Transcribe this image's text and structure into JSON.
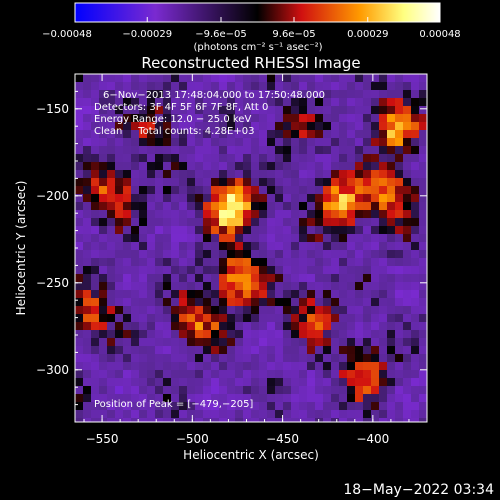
{
  "chart_data": {
    "type": "heatmap",
    "title": "Reconstructed RHESSI Image",
    "xlabel": "Heliocentric X (arcsec)",
    "ylabel": "Heliocentric Y (arcsec)",
    "xlim": [
      -565,
      -370
    ],
    "ylim": [
      -330,
      -130
    ],
    "x_ticks": [
      -550,
      -500,
      -450,
      -400
    ],
    "y_ticks": [
      -150,
      -200,
      -250,
      -300
    ],
    "x_tick_labels": [
      "−550",
      "−500",
      "−450",
      "−400"
    ],
    "y_tick_labels": [
      "−150",
      "−200",
      "−250",
      "−300"
    ],
    "colorbar": {
      "range": [
        -0.00048,
        0.00048
      ],
      "ticks": [
        -0.00048,
        -0.00029,
        -9.6e-05,
        9.6e-05,
        0.00029,
        0.00048
      ],
      "tick_labels": [
        "−0.00048",
        "−0.00029",
        "−9.6e−05",
        "9.6e−05",
        "0.00029",
        "0.00048"
      ],
      "unit_label": "(photons cm⁻² s⁻¹ asec⁻²)"
    },
    "annotations": [
      "6−Nov−2013 17:48:04.000 to 17:50:48.000",
      "Detectors: 3F 4F 5F 6F 7F 8F, Att 0",
      "Energy Range: 12.0 − 25.0 keV",
      "Clean     Total counts: 4.28E+03"
    ],
    "peak_label": "Position of Peak = [−479,−205]",
    "peak": [
      -479,
      -205
    ],
    "bright_regions": [
      {
        "x": -479,
        "y": -205,
        "value": 0.00048
      },
      {
        "x": -543,
        "y": -197,
        "value": 0.0003
      },
      {
        "x": -520,
        "y": -160,
        "value": 0.00022
      },
      {
        "x": -475,
        "y": -248,
        "value": 0.0004
      },
      {
        "x": -498,
        "y": -272,
        "value": 0.0003
      },
      {
        "x": -418,
        "y": -205,
        "value": 0.0004
      },
      {
        "x": -388,
        "y": -160,
        "value": 0.00035
      },
      {
        "x": -390,
        "y": -200,
        "value": 0.00034
      },
      {
        "x": -405,
        "y": -300,
        "value": 0.0003
      },
      {
        "x": -432,
        "y": -268,
        "value": 0.00025
      },
      {
        "x": -555,
        "y": -268,
        "value": 0.00026
      },
      {
        "x": -445,
        "y": -160,
        "value": 0.0002
      }
    ],
    "grid": false,
    "colormap": [
      "#0000ff",
      "#7a2ad0",
      "#000000",
      "#d01010",
      "#ff9a00",
      "#ffff80",
      "#ffffff"
    ]
  },
  "footer": {
    "timestamp": "18−May−2022 03:34"
  }
}
